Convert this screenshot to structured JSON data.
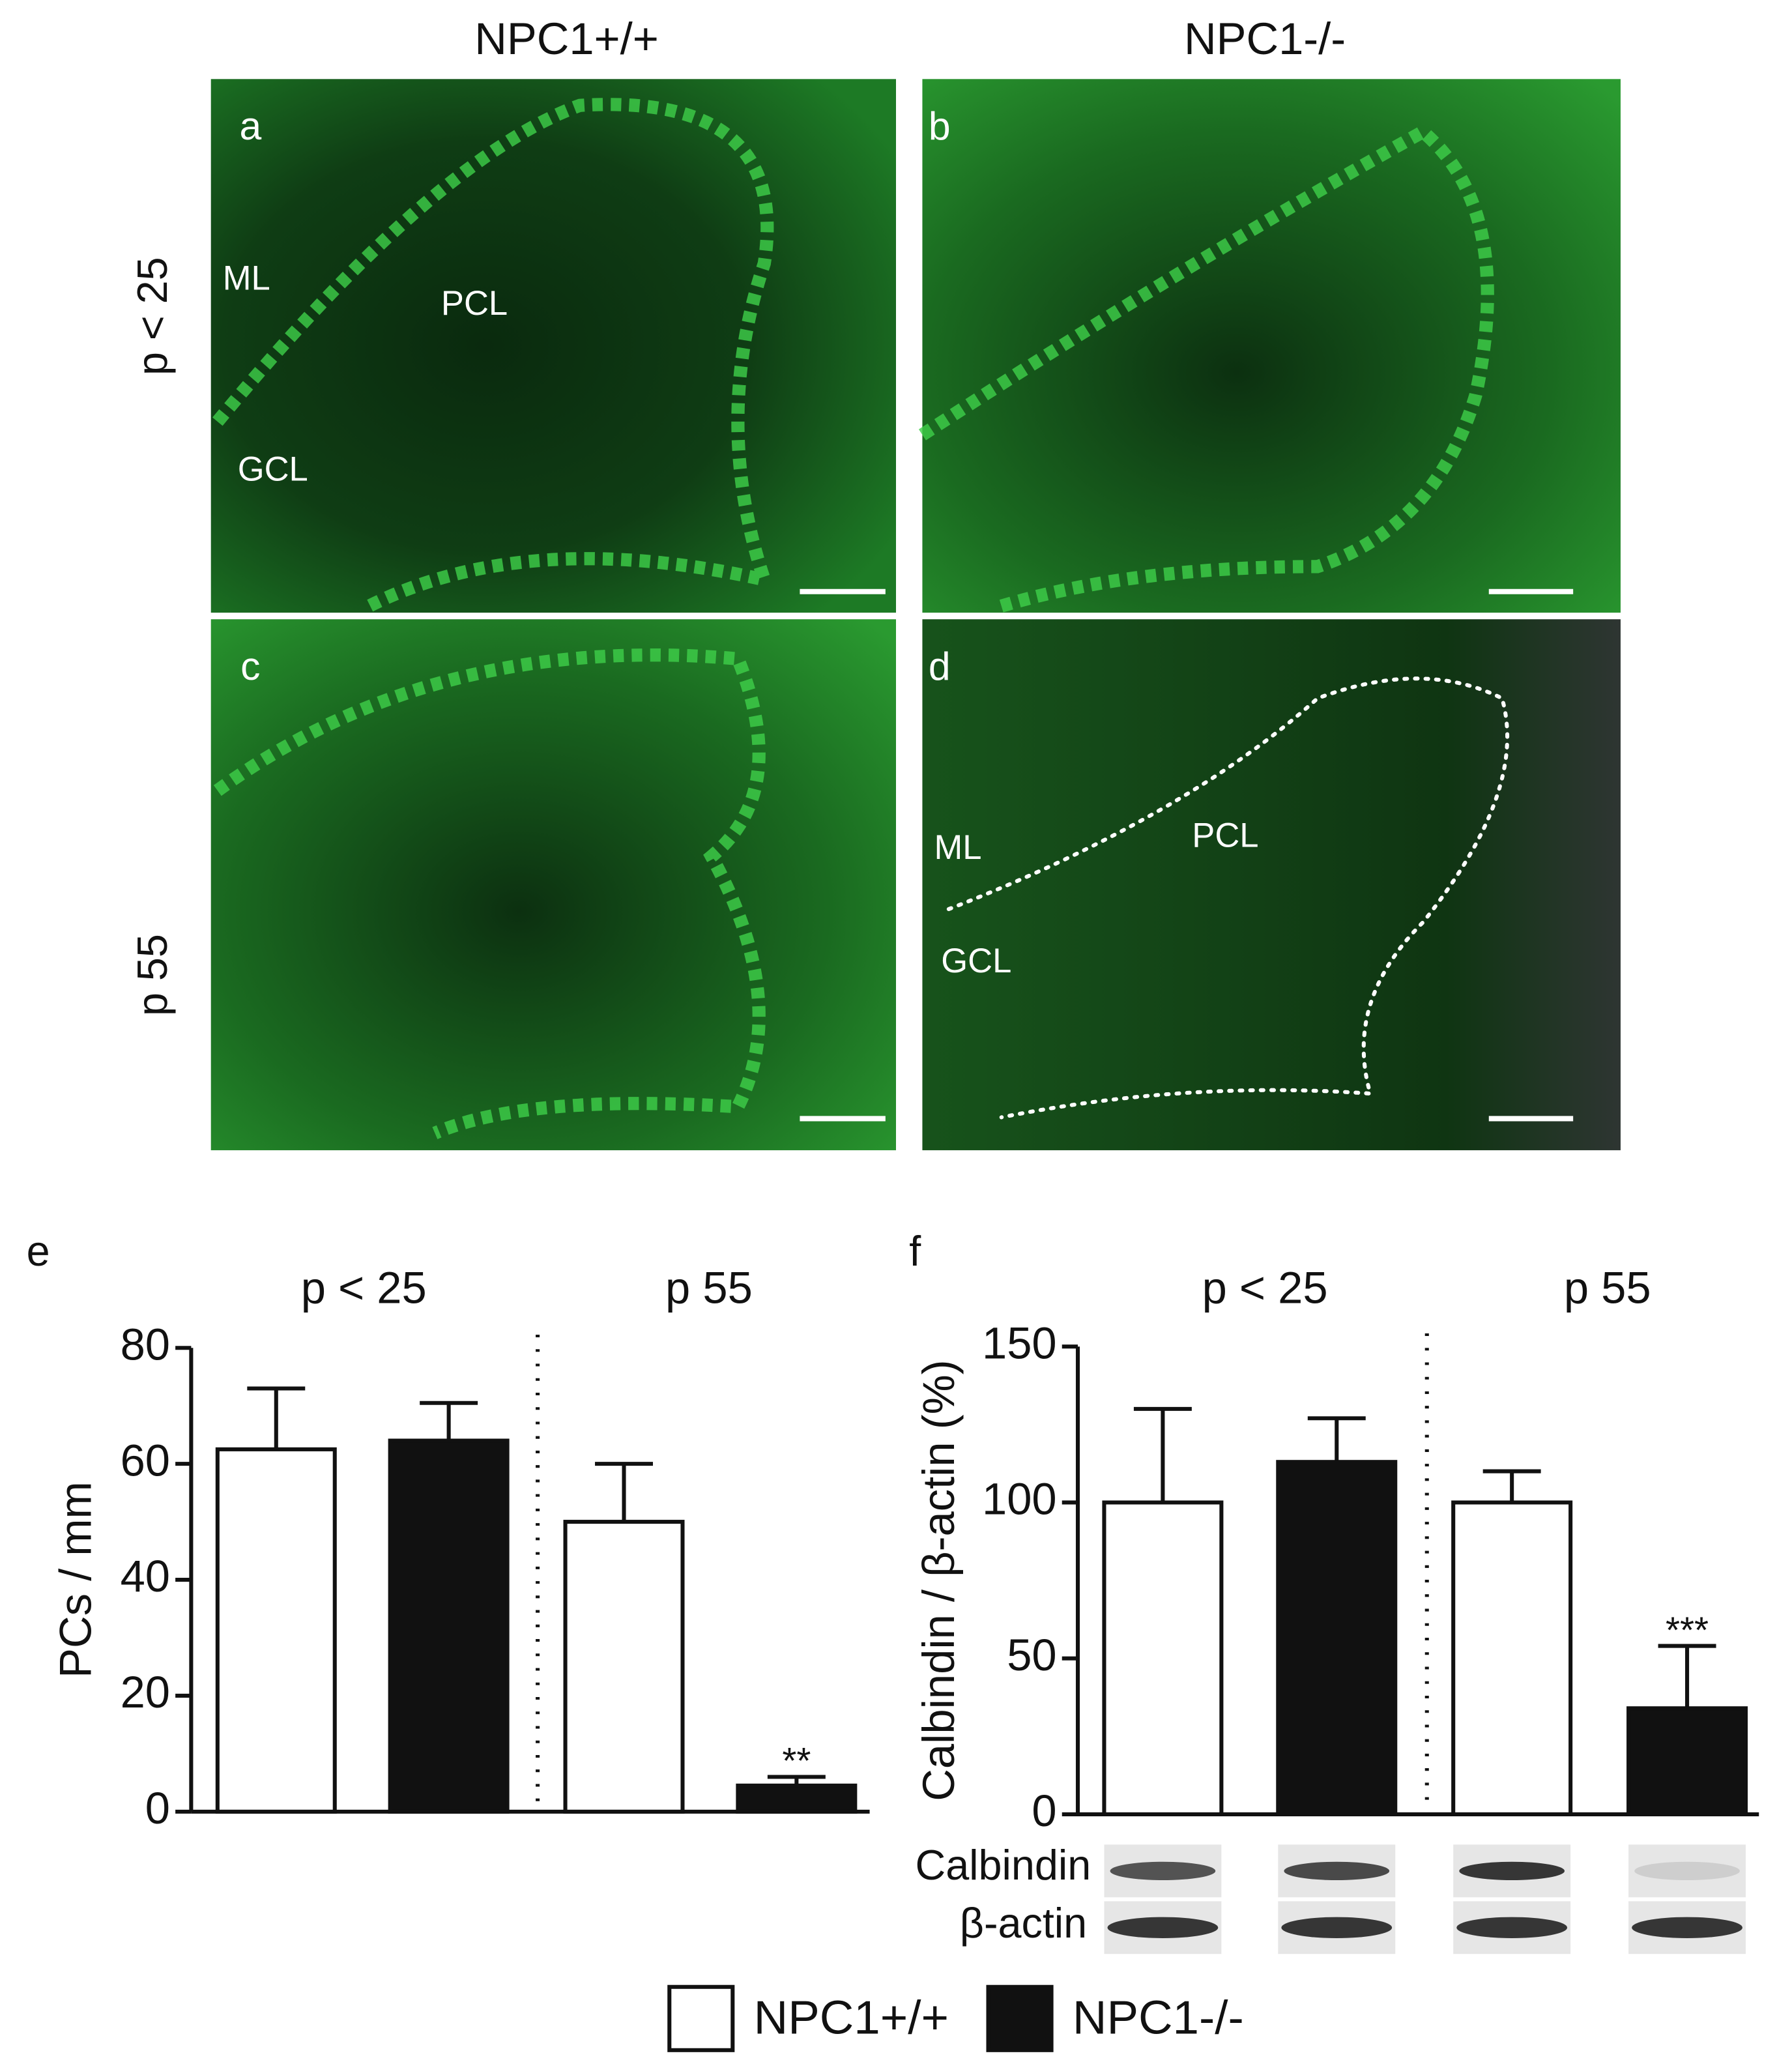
{
  "figure": {
    "column_headers": [
      "NPC1+/+",
      "NPC1-/-"
    ],
    "row_labels": [
      "p < 25",
      "p 55"
    ],
    "panels": [
      {
        "label": "a",
        "regions": [
          "ML",
          "PCL",
          "GCL"
        ]
      },
      {
        "label": "b",
        "regions": []
      },
      {
        "label": "c",
        "regions": []
      },
      {
        "label": "d",
        "regions": [
          "ML",
          "PCL",
          "GCL"
        ]
      }
    ],
    "blot_labels": [
      "Calbindin",
      "β-actin"
    ]
  },
  "chart_data": [
    {
      "type": "bar",
      "panel_label": "e",
      "y_label": "PCs / mm",
      "groups": [
        "p < 25",
        "p 55"
      ],
      "series": [
        {
          "name": "NPC1+/+",
          "color": "#ffffff",
          "values": [
            62.5,
            50
          ],
          "errors": [
            10.5,
            10
          ]
        },
        {
          "name": "NPC1-/-",
          "color": "#111111",
          "values": [
            64,
            4.5
          ],
          "errors": [
            6.5,
            1.5
          ]
        }
      ],
      "annotations": [
        "**"
      ],
      "ylim": [
        0,
        80
      ],
      "yticks": [
        0,
        20,
        40,
        60,
        80
      ]
    },
    {
      "type": "bar",
      "panel_label": "f",
      "y_label": "Calbindin / β-actin (%)",
      "groups": [
        "p < 25",
        "p 55"
      ],
      "series": [
        {
          "name": "NPC1+/+",
          "color": "#ffffff",
          "values": [
            100,
            100
          ],
          "errors": [
            30,
            10
          ]
        },
        {
          "name": "NPC1-/-",
          "color": "#111111",
          "values": [
            113,
            34
          ],
          "errors": [
            14,
            20
          ]
        }
      ],
      "annotations": [
        "***"
      ],
      "ylim": [
        0,
        150
      ],
      "yticks": [
        0,
        50,
        100,
        150
      ]
    }
  ]
}
